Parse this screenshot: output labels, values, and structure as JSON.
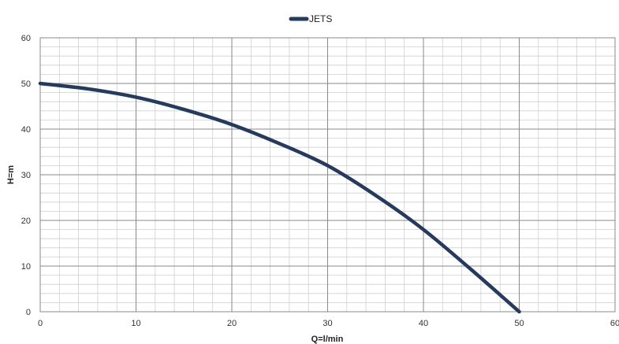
{
  "chart_data": {
    "type": "line",
    "title": "",
    "xlabel": "Q=l/min",
    "ylabel": "H=m",
    "xlim": [
      0,
      60
    ],
    "ylim": [
      0,
      60
    ],
    "x_ticks": [
      "0",
      "10",
      "20",
      "30",
      "40",
      "50",
      "60"
    ],
    "y_ticks": [
      "0",
      "10",
      "20",
      "30",
      "40",
      "50",
      "60"
    ],
    "grid": true,
    "minor_grid": true,
    "legend_position": "top-center",
    "series": [
      {
        "name": "JETS",
        "color": "#243a5e",
        "x": [
          0,
          5,
          10,
          15,
          20,
          25,
          30,
          35,
          40,
          45,
          50
        ],
        "y": [
          50,
          48.8,
          47,
          44.3,
          41,
          36.8,
          32,
          25.5,
          18,
          9.2,
          0
        ]
      }
    ]
  }
}
